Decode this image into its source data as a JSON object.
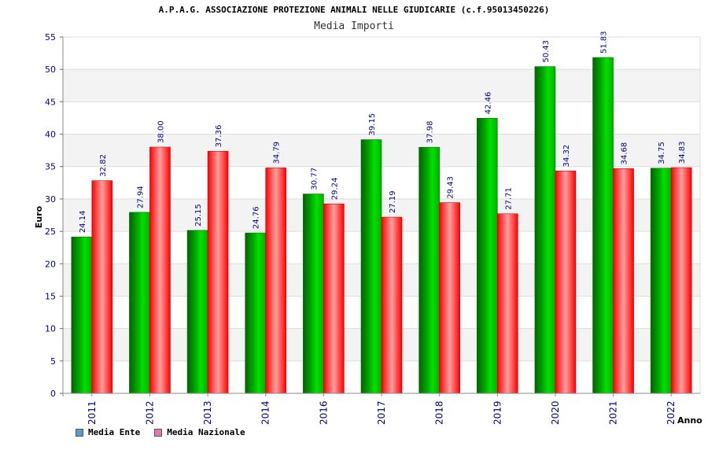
{
  "chart_data": {
    "type": "bar",
    "title": "A.P.A.G. ASSOCIAZIONE PROTEZIONE ANIMALI NELLE GIUDICARIE (c.f.95013450226)",
    "subtitle": "Media Importi",
    "xlabel": "Anno",
    "ylabel": "Euro",
    "ylim": [
      0,
      55
    ],
    "yticks": [
      "0",
      "5",
      "10",
      "15",
      "20",
      "25",
      "30",
      "35",
      "40",
      "45",
      "50",
      "55"
    ],
    "grid": true,
    "legend_position": "bottom-left",
    "categories": [
      "2011",
      "2012",
      "2013",
      "2014",
      "2016",
      "2017",
      "2018",
      "2019",
      "2020",
      "2021",
      "2022"
    ],
    "series": [
      {
        "name": "Media Ente",
        "color": "#00c000",
        "legend_color": "#5b9bd5",
        "values": [
          24.14,
          27.94,
          25.15,
          24.76,
          30.77,
          39.15,
          37.98,
          42.46,
          50.43,
          51.83,
          34.75
        ],
        "labels": [
          "24.14",
          "27.94",
          "25.15",
          "24.76",
          "30.77",
          "39.15",
          "37.98",
          "42.46",
          "50.43",
          "51.83",
          "34.75"
        ]
      },
      {
        "name": "Media Nazionale",
        "color": "#ff0000",
        "legend_color": "#e07ab0",
        "values": [
          32.82,
          38.0,
          37.36,
          34.79,
          29.24,
          27.19,
          29.43,
          27.71,
          34.32,
          34.68,
          34.83
        ],
        "labels": [
          "32.82",
          "38.00",
          "37.36",
          "34.79",
          "29.24",
          "27.19",
          "29.43",
          "27.71",
          "34.32",
          "34.68",
          "34.83"
        ]
      }
    ]
  }
}
